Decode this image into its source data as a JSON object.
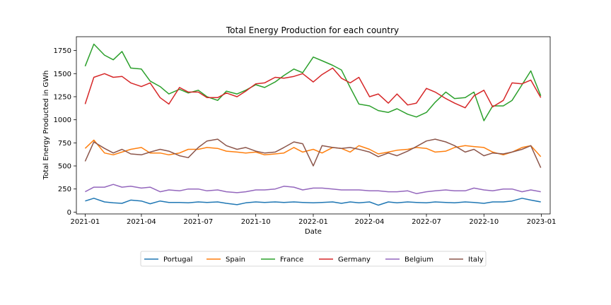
{
  "chart_data": {
    "type": "line",
    "title": "Total Energy Production for each country",
    "xlabel": "Date",
    "ylabel": "Total Energy Producted in GWh",
    "x_ticks": [
      "2021-01",
      "2021-04",
      "2021-07",
      "2021-10",
      "2022-01",
      "2022-04",
      "2022-07",
      "2022-10",
      "2023-01"
    ],
    "x_range": [
      "2021-01-01",
      "2022-12-31"
    ],
    "ylim": [
      -20,
      1900
    ],
    "y_ticks": [
      0,
      250,
      500,
      750,
      1000,
      1250,
      1500,
      1750
    ],
    "grid": false,
    "legend_placement": "bottom-center, below axes, single row",
    "x": [
      "2021-01-01",
      "2021-01-15",
      "2021-02-01",
      "2021-02-15",
      "2021-03-01",
      "2021-03-15",
      "2021-04-01",
      "2021-04-15",
      "2021-05-01",
      "2021-05-15",
      "2021-06-01",
      "2021-06-15",
      "2021-07-01",
      "2021-07-15",
      "2021-08-01",
      "2021-08-15",
      "2021-09-01",
      "2021-09-15",
      "2021-10-01",
      "2021-10-15",
      "2021-11-01",
      "2021-11-15",
      "2021-12-01",
      "2021-12-15",
      "2022-01-01",
      "2022-01-15",
      "2022-02-01",
      "2022-02-15",
      "2022-03-01",
      "2022-03-15",
      "2022-04-01",
      "2022-04-15",
      "2022-05-01",
      "2022-05-15",
      "2022-06-01",
      "2022-06-15",
      "2022-07-01",
      "2022-07-15",
      "2022-08-01",
      "2022-08-15",
      "2022-09-01",
      "2022-09-15",
      "2022-10-01",
      "2022-10-15",
      "2022-11-01",
      "2022-11-15",
      "2022-12-01",
      "2022-12-15",
      "2022-12-31"
    ],
    "series": [
      {
        "name": "Portugal",
        "color": "#1f77b4",
        "values": [
          120,
          150,
          110,
          100,
          95,
          130,
          120,
          90,
          120,
          105,
          105,
          100,
          110,
          105,
          110,
          95,
          80,
          100,
          110,
          105,
          110,
          105,
          110,
          105,
          100,
          105,
          110,
          95,
          110,
          100,
          110,
          75,
          110,
          100,
          110,
          105,
          100,
          110,
          105,
          100,
          110,
          105,
          95,
          110,
          110,
          120,
          150,
          130,
          110
        ]
      },
      {
        "name": "Spain",
        "color": "#ff7f0e",
        "values": [
          690,
          780,
          640,
          620,
          650,
          680,
          700,
          640,
          640,
          620,
          640,
          680,
          680,
          700,
          690,
          660,
          650,
          640,
          650,
          620,
          630,
          640,
          700,
          650,
          680,
          640,
          700,
          690,
          650,
          720,
          680,
          630,
          650,
          670,
          680,
          700,
          690,
          650,
          660,
          700,
          720,
          710,
          700,
          650,
          620,
          650,
          700,
          720,
          600
        ]
      },
      {
        "name": "France",
        "color": "#2ca02c",
        "values": [
          1580,
          1820,
          1700,
          1650,
          1740,
          1560,
          1550,
          1420,
          1360,
          1280,
          1330,
          1290,
          1320,
          1250,
          1210,
          1310,
          1280,
          1320,
          1380,
          1350,
          1410,
          1480,
          1550,
          1510,
          1680,
          1640,
          1590,
          1540,
          1350,
          1170,
          1150,
          1100,
          1080,
          1120,
          1060,
          1030,
          1080,
          1190,
          1300,
          1230,
          1240,
          1300,
          990,
          1150,
          1150,
          1210,
          1380,
          1530,
          1260
        ]
      },
      {
        "name": "Germany",
        "color": "#d62728",
        "values": [
          1170,
          1460,
          1500,
          1460,
          1470,
          1400,
          1360,
          1400,
          1240,
          1170,
          1350,
          1300,
          1300,
          1240,
          1240,
          1290,
          1250,
          1310,
          1390,
          1400,
          1460,
          1450,
          1470,
          1500,
          1410,
          1490,
          1560,
          1450,
          1400,
          1460,
          1250,
          1280,
          1180,
          1280,
          1160,
          1180,
          1340,
          1300,
          1230,
          1180,
          1130,
          1260,
          1320,
          1140,
          1210,
          1400,
          1390,
          1430,
          1240
        ]
      },
      {
        "name": "Belgium",
        "color": "#9467bd",
        "values": [
          220,
          270,
          270,
          300,
          270,
          280,
          260,
          270,
          220,
          240,
          230,
          250,
          250,
          230,
          240,
          220,
          210,
          220,
          240,
          240,
          250,
          280,
          270,
          240,
          260,
          260,
          250,
          240,
          240,
          240,
          230,
          230,
          220,
          220,
          230,
          200,
          220,
          230,
          240,
          230,
          230,
          260,
          240,
          230,
          250,
          250,
          220,
          240,
          220
        ]
      },
      {
        "name": "Italy",
        "color": "#8c564b",
        "values": [
          550,
          760,
          690,
          640,
          680,
          630,
          620,
          650,
          680,
          660,
          610,
          590,
          700,
          770,
          790,
          720,
          680,
          700,
          660,
          640,
          650,
          700,
          760,
          740,
          500,
          720,
          700,
          690,
          700,
          680,
          650,
          600,
          640,
          610,
          660,
          710,
          770,
          790,
          760,
          720,
          650,
          680,
          610,
          640,
          630,
          650,
          680,
          720,
          480
        ]
      }
    ]
  }
}
